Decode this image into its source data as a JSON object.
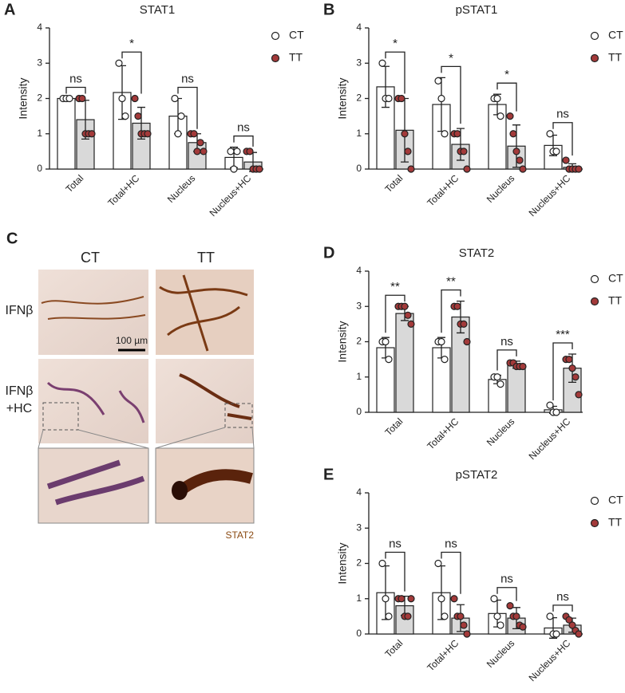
{
  "chart_data": [
    {
      "type": "bar",
      "panel": "A",
      "title": "STAT1",
      "y_label": "Intensity",
      "categories": [
        "Total",
        "Total+HC",
        "Nucleus",
        "Nucleus+HC"
      ],
      "ylim": [
        0,
        4
      ],
      "yticks": [
        0,
        1,
        2,
        3,
        4
      ],
      "significance": [
        "ns",
        "*",
        "ns",
        "ns"
      ],
      "series": [
        {
          "name": "CT",
          "color": "#ffffff",
          "point_color": "#ffffff",
          "values": [
            2.0,
            2.17,
            1.5,
            0.33
          ],
          "errors": [
            0,
            0.76,
            0.5,
            0.29
          ],
          "points": [
            [
              2,
              2,
              2
            ],
            [
              3,
              2,
              1.5
            ],
            [
              2,
              1,
              1.5
            ],
            [
              0.5,
              0,
              0.5
            ]
          ]
        },
        {
          "name": "TT",
          "color": "#d9d9d9",
          "point_color": "#a33a3a",
          "values": [
            1.4,
            1.3,
            0.75,
            0.2
          ],
          "errors": [
            0.55,
            0.45,
            0.25,
            0.27
          ],
          "points": [
            [
              2,
              2,
              1,
              1,
              1
            ],
            [
              2,
              1.5,
              1,
              1,
              1
            ],
            [
              1,
              1,
              0.5,
              0.75,
              0.5
            ],
            [
              0.5,
              0.5,
              0,
              0,
              0
            ]
          ]
        }
      ]
    },
    {
      "type": "bar",
      "panel": "B",
      "title": "pSTAT1",
      "y_label": "Intensity",
      "categories": [
        "Total",
        "Total+HC",
        "Nucleus",
        "Nucleus+HC"
      ],
      "ylim": [
        0,
        4
      ],
      "yticks": [
        0,
        1,
        2,
        3,
        4
      ],
      "significance": [
        "*",
        "*",
        "*",
        "ns"
      ],
      "series": [
        {
          "name": "CT",
          "color": "#ffffff",
          "point_color": "#ffffff",
          "values": [
            2.33,
            1.83,
            1.83,
            0.67
          ],
          "errors": [
            0.58,
            0.76,
            0.29,
            0.29
          ],
          "points": [
            [
              3,
              2,
              2
            ],
            [
              2.5,
              2,
              1
            ],
            [
              2,
              2,
              1.5
            ],
            [
              1,
              0.5,
              0.5
            ]
          ]
        },
        {
          "name": "TT",
          "color": "#d9d9d9",
          "point_color": "#a33a3a",
          "values": [
            1.1,
            0.7,
            0.65,
            0.05
          ],
          "errors": [
            0.9,
            0.45,
            0.6,
            0.1
          ],
          "points": [
            [
              2,
              2,
              1,
              0.5,
              0
            ],
            [
              1,
              1,
              0.5,
              0.5,
              0
            ],
            [
              1.5,
              1,
              0.5,
              0.25,
              0
            ],
            [
              0.25,
              0,
              0,
              0,
              0
            ]
          ]
        }
      ]
    },
    {
      "type": "bar",
      "panel": "D",
      "title": "STAT2",
      "y_label": "Intensity",
      "categories": [
        "Total",
        "Total+HC",
        "Nucleus",
        "Nucleus+HC"
      ],
      "ylim": [
        0,
        4
      ],
      "yticks": [
        0,
        1,
        2,
        3,
        4
      ],
      "significance": [
        "**",
        "**",
        "ns",
        "***"
      ],
      "series": [
        {
          "name": "CT",
          "color": "#ffffff",
          "point_color": "#ffffff",
          "values": [
            1.83,
            1.83,
            0.93,
            0.07
          ],
          "errors": [
            0.29,
            0.29,
            0.12,
            0.1
          ],
          "points": [
            [
              2,
              2,
              1.5
            ],
            [
              2,
              2,
              1.5
            ],
            [
              1,
              1,
              0.8
            ],
            [
              0.2,
              0,
              0
            ]
          ]
        },
        {
          "name": "TT",
          "color": "#d9d9d9",
          "point_color": "#a33a3a",
          "values": [
            2.8,
            2.7,
            1.35,
            1.25
          ],
          "errors": [
            0.2,
            0.45,
            0.1,
            0.4
          ],
          "points": [
            [
              3,
              3,
              3,
              2.75,
              2.5
            ],
            [
              3,
              3,
              2.5,
              2.5,
              2
            ],
            [
              1.4,
              1.4,
              1.3,
              1.3,
              1.3
            ],
            [
              1.5,
              1.5,
              1.25,
              1,
              0.5
            ]
          ]
        }
      ]
    },
    {
      "type": "bar",
      "panel": "E",
      "title": "pSTAT2",
      "y_label": "Intensity",
      "categories": [
        "Total",
        "Total+HC",
        "Nucleus",
        "Nucleus+HC"
      ],
      "ylim": [
        0,
        4
      ],
      "yticks": [
        0,
        1,
        2,
        3,
        4
      ],
      "significance": [
        "ns",
        "ns",
        "ns",
        "ns"
      ],
      "series": [
        {
          "name": "CT",
          "color": "#ffffff",
          "point_color": "#ffffff",
          "values": [
            1.17,
            1.17,
            0.58,
            0.17
          ],
          "errors": [
            0.76,
            0.76,
            0.38,
            0.29
          ],
          "points": [
            [
              2,
              1,
              0.5
            ],
            [
              2,
              1,
              0.5
            ],
            [
              1,
              0.5,
              0.25
            ],
            [
              0.5,
              0,
              0
            ]
          ]
        },
        {
          "name": "TT",
          "color": "#d9d9d9",
          "point_color": "#a33a3a",
          "values": [
            0.8,
            0.45,
            0.45,
            0.25
          ],
          "errors": [
            0.27,
            0.38,
            0.3,
            0.2
          ],
          "points": [
            [
              1,
              1,
              0.5,
              0.5,
              1
            ],
            [
              1,
              0.5,
              0.5,
              0.25,
              0
            ],
            [
              0.8,
              0.5,
              0.5,
              0.25,
              0.2
            ],
            [
              0.5,
              0.4,
              0.25,
              0.1,
              0
            ]
          ]
        }
      ]
    }
  ],
  "panel_c": {
    "panel": "C",
    "columns": [
      "CT",
      "TT"
    ],
    "rows": [
      "IFNβ",
      "IFNβ",
      "+HC"
    ],
    "scale_bar": "100 µm",
    "stain": "STAT2"
  }
}
